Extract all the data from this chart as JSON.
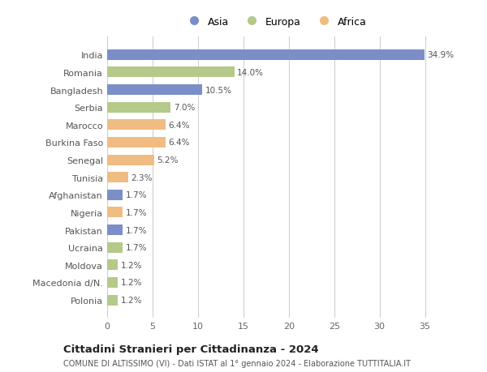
{
  "countries": [
    "India",
    "Romania",
    "Bangladesh",
    "Serbia",
    "Marocco",
    "Burkina Faso",
    "Senegal",
    "Tunisia",
    "Afghanistan",
    "Nigeria",
    "Pakistan",
    "Ucraina",
    "Moldova",
    "Macedonia d/N.",
    "Polonia"
  ],
  "values": [
    34.9,
    14.0,
    10.5,
    7.0,
    6.4,
    6.4,
    5.2,
    2.3,
    1.7,
    1.7,
    1.7,
    1.7,
    1.2,
    1.2,
    1.2
  ],
  "continents": [
    "Asia",
    "Europa",
    "Asia",
    "Europa",
    "Africa",
    "Africa",
    "Africa",
    "Africa",
    "Asia",
    "Africa",
    "Asia",
    "Europa",
    "Europa",
    "Europa",
    "Europa"
  ],
  "colors": {
    "Asia": "#7b8ec8",
    "Europa": "#b5c98a",
    "Africa": "#f0bc82"
  },
  "title": "Cittadini Stranieri per Cittadinanza - 2024",
  "subtitle": "COMUNE DI ALTISSIMO (VI) - Dati ISTAT al 1° gennaio 2024 - Elaborazione TUTTITALIA.IT",
  "xlim": [
    0,
    37
  ],
  "xticks": [
    0,
    5,
    10,
    15,
    20,
    25,
    30,
    35
  ],
  "background_color": "#ffffff",
  "grid_color": "#d0d0d0",
  "bar_height": 0.6
}
